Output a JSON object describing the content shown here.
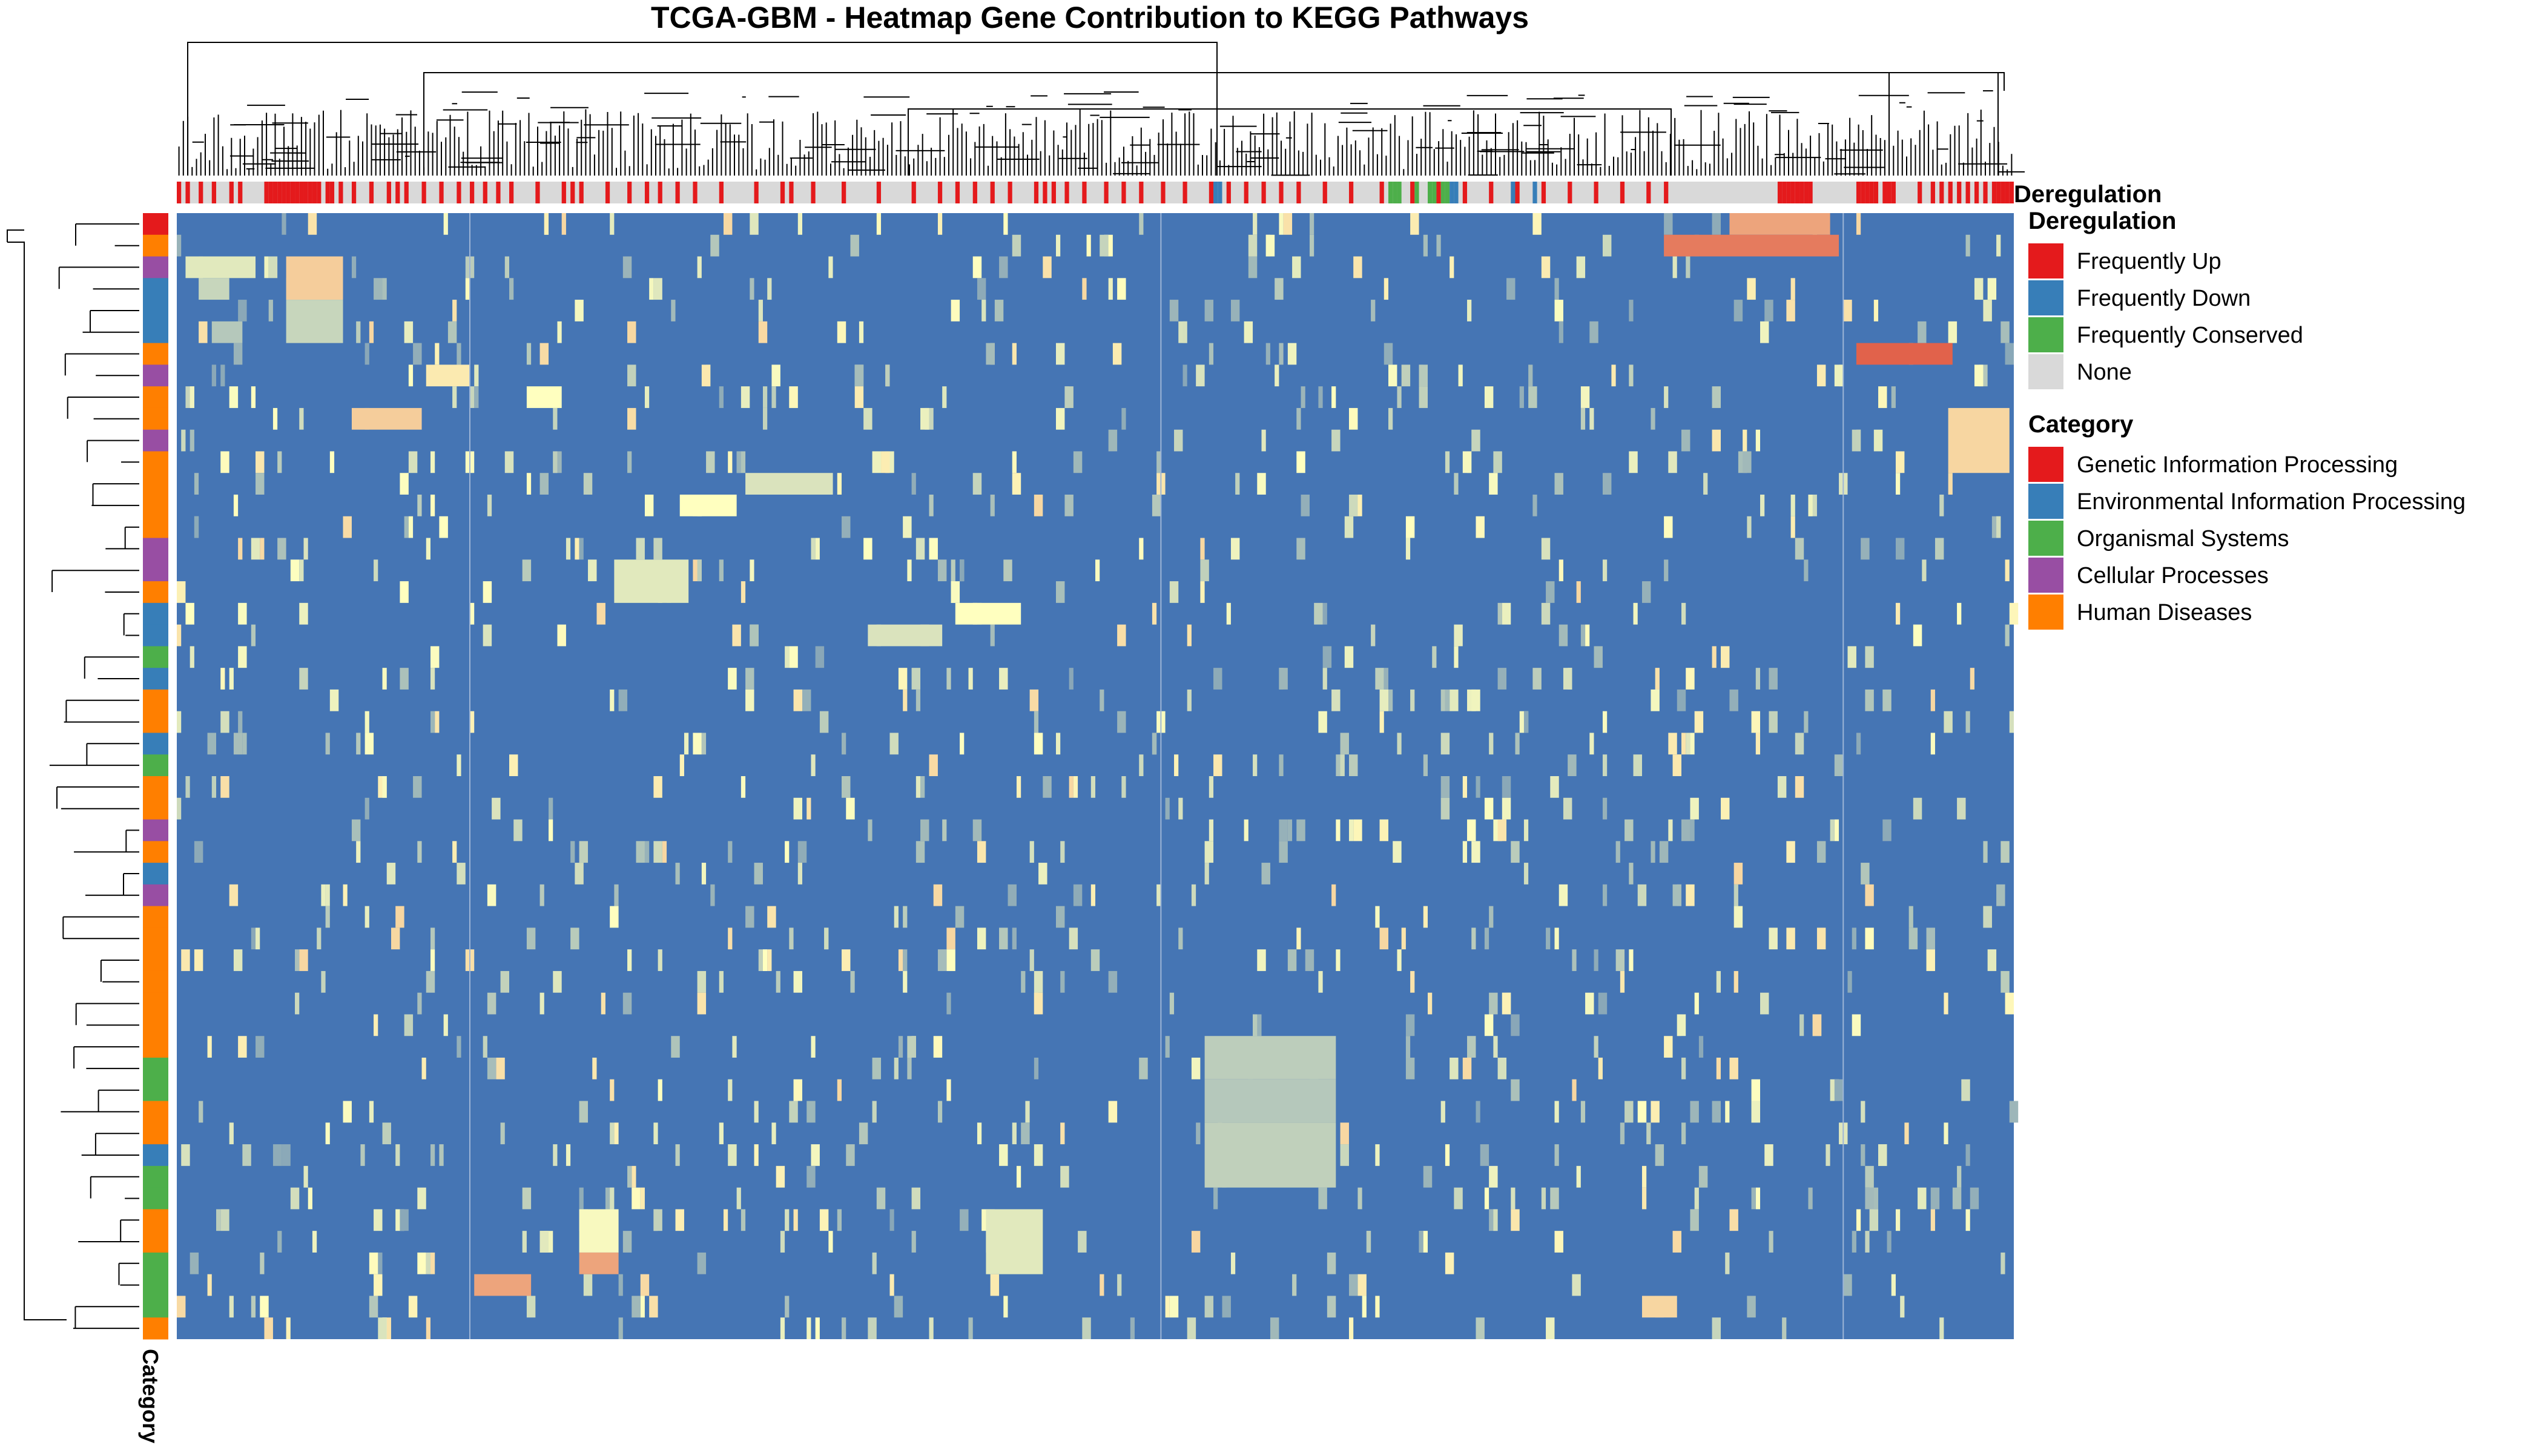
{
  "chart_data": {
    "type": "heatmap",
    "title": "TCGA-GBM - Heatmap Gene Contribution to KEGG Pathways",
    "column_annotation_label": "Deregulation",
    "row_annotation_label": "Category",
    "legends": [
      {
        "title": "Deregulation",
        "entries": [
          {
            "label": "Frequently Up",
            "color": "#E41A1C"
          },
          {
            "label": "Frequently Down",
            "color": "#377EB8"
          },
          {
            "label": "Frequently Conserved",
            "color": "#4DAF4A"
          },
          {
            "label": "None",
            "color": "#D9D9D9"
          }
        ]
      },
      {
        "title": "Category",
        "entries": [
          {
            "label": "Genetic Information Processing",
            "color": "#E41A1C"
          },
          {
            "label": "Environmental Information Processing",
            "color": "#377EB8"
          },
          {
            "label": "Organismal Systems",
            "color": "#4DAF4A"
          },
          {
            "label": "Cellular Processes",
            "color": "#984EA3"
          },
          {
            "label": "Human Diseases",
            "color": "#FF7F00"
          }
        ]
      }
    ],
    "row_categories": [
      "Genetic Information Processing",
      "Human Diseases",
      "Cellular Processes",
      "Environmental Information Processing",
      "Environmental Information Processing",
      "Environmental Information Processing",
      "Human Diseases",
      "Cellular Processes",
      "Human Diseases",
      "Human Diseases",
      "Cellular Processes",
      "Human Diseases",
      "Human Diseases",
      "Human Diseases",
      "Human Diseases",
      "Cellular Processes",
      "Cellular Processes",
      "Human Diseases",
      "Environmental Information Processing",
      "Environmental Information Processing",
      "Organismal Systems",
      "Environmental Information Processing",
      "Human Diseases",
      "Human Diseases",
      "Environmental Information Processing",
      "Organismal Systems",
      "Human Diseases",
      "Human Diseases",
      "Cellular Processes",
      "Human Diseases",
      "Environmental Information Processing",
      "Cellular Processes",
      "Human Diseases",
      "Human Diseases",
      "Human Diseases",
      "Human Diseases",
      "Human Diseases",
      "Human Diseases",
      "Human Diseases",
      "Organismal Systems",
      "Organismal Systems",
      "Human Diseases",
      "Human Diseases",
      "Environmental Information Processing",
      "Organismal Systems",
      "Organismal Systems",
      "Human Diseases",
      "Human Diseases",
      "Organismal Systems",
      "Organismal Systems",
      "Organismal Systems",
      "Human Diseases"
    ],
    "n_columns": 420,
    "column_deregulation": {
      "default": "None",
      "frequently_up_columns": [
        0,
        2,
        5,
        8,
        12,
        14,
        20,
        21,
        22,
        23,
        24,
        25,
        26,
        27,
        28,
        29,
        30,
        31,
        32,
        34,
        35,
        37,
        40,
        44,
        48,
        50,
        52,
        56,
        60,
        64,
        67,
        70,
        73,
        76,
        82,
        88,
        90,
        92,
        98,
        103,
        107,
        110,
        114,
        118,
        124,
        132,
        138,
        140,
        145,
        152,
        160,
        168,
        174,
        178,
        182,
        186,
        190,
        196,
        198,
        200,
        203,
        207,
        212,
        216,
        220,
        225,
        230,
        236,
        240,
        244,
        248,
        252,
        256,
        262,
        268,
        275,
        282,
        288,
        294,
        300,
        306,
        312,
        318,
        324,
        330,
        336,
        340,
        366,
        367,
        368,
        369,
        370,
        371,
        372,
        373,
        384,
        385,
        386,
        387,
        388,
        390,
        391,
        392,
        398,
        401,
        403,
        405,
        407,
        409,
        411,
        413,
        415,
        416,
        417,
        418,
        419
      ],
      "frequently_down_columns": [
        236,
        237,
        238,
        291,
        292,
        305,
        306,
        310
      ],
      "frequently_conserved_columns": [
        277,
        278,
        279,
        282,
        283,
        286,
        287,
        288,
        289,
        290
      ]
    },
    "color_scale": {
      "low_color": "#4575B4",
      "mid_color": "#FFFFBF",
      "high_color": "#D73027"
    },
    "blocks": [
      {
        "r": [
          0,
          1
        ],
        "c": [
          355,
          378
        ],
        "v": 0.72
      },
      {
        "r": [
          1,
          2
        ],
        "c": [
          340,
          380
        ],
        "v": 0.82
      },
      {
        "r": [
          2,
          3
        ],
        "c": [
          2,
          18
        ],
        "v": 0.42
      },
      {
        "r": [
          2,
          4
        ],
        "c": [
          25,
          38
        ],
        "v": 0.62
      },
      {
        "r": [
          3,
          4
        ],
        "c": [
          5,
          12
        ],
        "v": 0.35
      },
      {
        "r": [
          4,
          6
        ],
        "c": [
          25,
          38
        ],
        "v": 0.35
      },
      {
        "r": [
          5,
          6
        ],
        "c": [
          8,
          15
        ],
        "v": 0.3
      },
      {
        "r": [
          6,
          7
        ],
        "c": [
          384,
          406
        ],
        "v": 0.88
      },
      {
        "r": [
          7,
          8
        ],
        "c": [
          57,
          67
        ],
        "v": 0.55
      },
      {
        "r": [
          8,
          9
        ],
        "c": [
          80,
          88
        ],
        "v": 0.5
      },
      {
        "r": [
          9,
          10
        ],
        "c": [
          40,
          56
        ],
        "v": 0.62
      },
      {
        "r": [
          12,
          13
        ],
        "c": [
          130,
          150
        ],
        "v": 0.4
      },
      {
        "r": [
          13,
          14
        ],
        "c": [
          115,
          128
        ],
        "v": 0.5
      },
      {
        "r": [
          16,
          18
        ],
        "c": [
          100,
          117
        ],
        "v": 0.42
      },
      {
        "r": [
          18,
          19
        ],
        "c": [
          178,
          193
        ],
        "v": 0.5
      },
      {
        "r": [
          19,
          20
        ],
        "c": [
          158,
          175
        ],
        "v": 0.4
      },
      {
        "r": [
          38,
          40
        ],
        "c": [
          235,
          265
        ],
        "v": 0.32
      },
      {
        "r": [
          40,
          42
        ],
        "c": [
          235,
          265
        ],
        "v": 0.3
      },
      {
        "r": [
          42,
          45
        ],
        "c": [
          235,
          265
        ],
        "v": 0.33
      },
      {
        "r": [
          46,
          48
        ],
        "c": [
          92,
          101
        ],
        "v": 0.48
      },
      {
        "r": [
          48,
          49
        ],
        "c": [
          92,
          101
        ],
        "v": 0.72
      },
      {
        "r": [
          46,
          49
        ],
        "c": [
          185,
          198
        ],
        "v": 0.42
      },
      {
        "r": [
          49,
          50
        ],
        "c": [
          68,
          81
        ],
        "v": 0.72
      },
      {
        "r": [
          50,
          51
        ],
        "c": [
          335,
          343
        ],
        "v": 0.6
      },
      {
        "r": [
          9,
          12
        ],
        "c": [
          405,
          419
        ],
        "v": 0.6
      }
    ],
    "line_columns": [
      67,
      225,
      381
    ]
  }
}
